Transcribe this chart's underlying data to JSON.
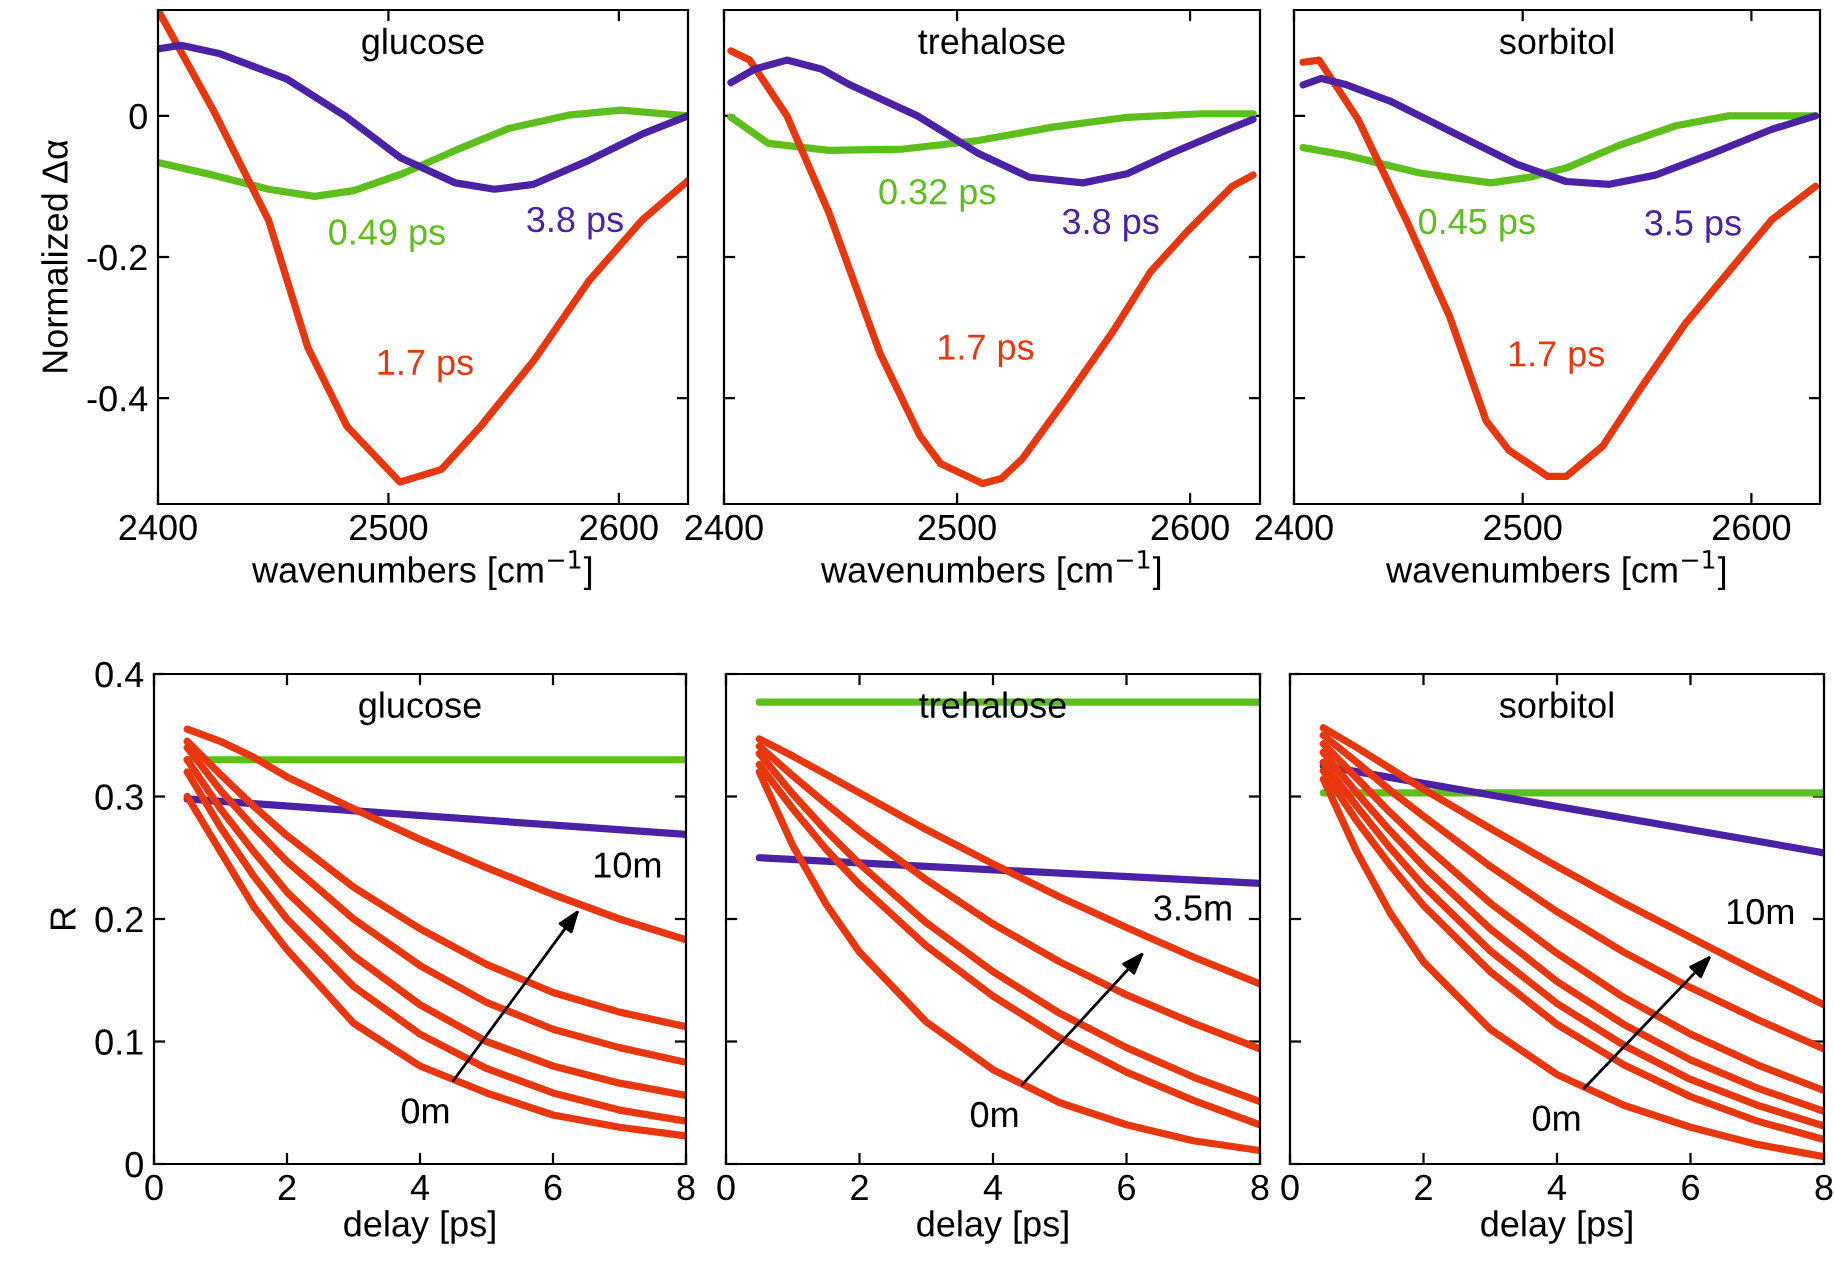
{
  "chart_data": [
    {
      "type": "line",
      "title": "glucose",
      "xlabel": "wavenumbers [cm$^{−1}$]",
      "ylabel": "Normalized Δα",
      "xlim": [
        2400,
        2630
      ],
      "ylim": [
        -0.55,
        0.15
      ],
      "xticks": [
        2400,
        2500,
        2600
      ],
      "yticks": [
        -0.4,
        -0.2,
        0
      ],
      "grid": false,
      "line_style": "solid",
      "marker": "none",
      "series": [
        {
          "name": "0.49 ps",
          "color": "#5cbf1c",
          "x": [
            2400,
            2424,
            2448,
            2468,
            2485,
            2506,
            2529,
            2552,
            2578,
            2601,
            2630
          ],
          "values": [
            -0.066,
            -0.084,
            -0.104,
            -0.114,
            -0.106,
            -0.082,
            -0.049,
            -0.018,
            0.001,
            0.008,
            0
          ]
        },
        {
          "name": "1.7 ps",
          "color": "#e8360e",
          "x": [
            2400,
            2424,
            2448,
            2465,
            2482,
            2505,
            2523,
            2540,
            2563,
            2587,
            2610,
            2630
          ],
          "values": [
            0.15,
            0.008,
            -0.148,
            -0.328,
            -0.44,
            -0.519,
            -0.501,
            -0.44,
            -0.347,
            -0.234,
            -0.148,
            -0.092
          ]
        },
        {
          "name": "3.8 ps",
          "color": "#4b22a6",
          "x": [
            2400,
            2410,
            2427,
            2456,
            2482,
            2505,
            2529,
            2546,
            2563,
            2587,
            2610,
            2630
          ],
          "values": [
            0.095,
            0.1,
            0.088,
            0.052,
            -0.002,
            -0.059,
            -0.095,
            -0.104,
            -0.097,
            -0.063,
            -0.026,
            0
          ]
        }
      ]
    },
    {
      "type": "line",
      "title": "trehalose",
      "xlabel": "wavenumbers [cm$^{−1}$]",
      "xlim": [
        2400,
        2630
      ],
      "ylim": [
        -0.55,
        0.15
      ],
      "xticks": [
        2400,
        2500,
        2600
      ],
      "yticks": [
        -0.4,
        -0.2,
        0
      ],
      "tick_labels": "x",
      "grid": false,
      "line_style": "solid",
      "marker": "none",
      "series": [
        {
          "name": "0.32 ps",
          "color": "#5cbf1c",
          "x": [
            2403,
            2419,
            2445,
            2477,
            2509,
            2541,
            2573,
            2605,
            2627
          ],
          "values": [
            -0.002,
            -0.039,
            -0.049,
            -0.047,
            -0.035,
            -0.016,
            -0.002,
            0.003,
            0.003
          ]
        },
        {
          "name": "1.7 ps",
          "color": "#e8360e",
          "x": [
            2403,
            2411,
            2427,
            2445,
            2467,
            2484,
            2493,
            2511,
            2519,
            2528,
            2547,
            2567,
            2583,
            2599,
            2618,
            2627
          ],
          "values": [
            0.092,
            0.079,
            0,
            -0.137,
            -0.337,
            -0.453,
            -0.493,
            -0.521,
            -0.514,
            -0.486,
            -0.4,
            -0.305,
            -0.221,
            -0.163,
            -0.1,
            -0.084
          ]
        },
        {
          "name": "3.8 ps",
          "color": "#4b22a6",
          "x": [
            2403,
            2413,
            2427,
            2442,
            2454,
            2483,
            2509,
            2531,
            2554,
            2573,
            2592,
            2615,
            2627
          ],
          "values": [
            0.047,
            0.066,
            0.079,
            0.066,
            0.044,
            0,
            -0.053,
            -0.087,
            -0.095,
            -0.082,
            -0.053,
            -0.021,
            -0.005
          ]
        }
      ]
    },
    {
      "type": "line",
      "title": "sorbitol",
      "xlabel": "wavenumbers [cm$^{−1}$]",
      "xlim": [
        2400,
        2630
      ],
      "ylim": [
        -0.55,
        0.15
      ],
      "xticks": [
        2400,
        2500,
        2600
      ],
      "yticks": [
        -0.4,
        -0.2,
        0
      ],
      "tick_labels": "x",
      "grid": false,
      "line_style": "solid",
      "marker": "none",
      "series": [
        {
          "name": "0.45 ps",
          "color": "#5cbf1c",
          "x": [
            2404,
            2423,
            2455,
            2486,
            2503,
            2519,
            2542,
            2567,
            2590,
            2628
          ],
          "values": [
            -0.045,
            -0.056,
            -0.081,
            -0.095,
            -0.087,
            -0.074,
            -0.042,
            -0.014,
            0,
            0
          ]
        },
        {
          "name": "1.7 ps",
          "color": "#e8360e",
          "x": [
            2404,
            2411,
            2428,
            2449,
            2468,
            2484,
            2494,
            2511,
            2519,
            2535,
            2551,
            2571,
            2590,
            2609,
            2628
          ],
          "values": [
            0.076,
            0.079,
            -0.005,
            -0.147,
            -0.284,
            -0.432,
            -0.474,
            -0.511,
            -0.511,
            -0.468,
            -0.389,
            -0.295,
            -0.221,
            -0.147,
            -0.1
          ]
        },
        {
          "name": "3.5 ps",
          "color": "#4b22a6",
          "x": [
            2404,
            2412,
            2423,
            2442,
            2471,
            2497,
            2519,
            2538,
            2558,
            2583,
            2609,
            2628
          ],
          "values": [
            0.044,
            0.053,
            0.044,
            0.021,
            -0.026,
            -0.068,
            -0.093,
            -0.097,
            -0.084,
            -0.053,
            -0.019,
            0
          ]
        }
      ]
    },
    {
      "type": "line",
      "title": "glucose",
      "xlabel": "delay [ps]",
      "ylabel": "R",
      "xlim": [
        0,
        8
      ],
      "ylim": [
        0,
        0.4
      ],
      "xticks": [
        0,
        2,
        4,
        6,
        8
      ],
      "yticks": [
        0,
        0.1,
        0.2,
        0.3,
        0.4
      ],
      "grid": false,
      "line_style": "solid",
      "marker": "none",
      "annotations": [
        {
          "text": "10m",
          "x": 6.45,
          "y": 0.212
        },
        {
          "text": "0m",
          "x": 4.5,
          "y": 0.068
        }
      ],
      "series": [
        {
          "color": "#5cbf1c",
          "x": [
            0.5,
            8
          ],
          "values": [
            0.33,
            0.33
          ]
        },
        {
          "color": "#4b22a6",
          "x": [
            0.5,
            8
          ],
          "values": [
            0.298,
            0.269
          ]
        },
        {
          "color": "#e8360e",
          "x": [
            0.5,
            1,
            1.5,
            2,
            3,
            4,
            5,
            6,
            7,
            8
          ],
          "values": [
            0.355,
            0.345,
            0.332,
            0.316,
            0.29,
            0.265,
            0.242,
            0.22,
            0.2,
            0.183
          ]
        },
        {
          "color": "#e8360e",
          "x": [
            0.5,
            1,
            1.5,
            2,
            3,
            4,
            5,
            6,
            7,
            8
          ],
          "values": [
            0.345,
            0.318,
            0.292,
            0.268,
            0.226,
            0.192,
            0.163,
            0.14,
            0.124,
            0.112
          ]
        },
        {
          "color": "#e8360e",
          "x": [
            0.5,
            1,
            1.5,
            2,
            3,
            4,
            5,
            6,
            7,
            8
          ],
          "values": [
            0.34,
            0.305,
            0.275,
            0.247,
            0.2,
            0.162,
            0.132,
            0.11,
            0.095,
            0.083
          ]
        },
        {
          "color": "#e8360e",
          "x": [
            0.5,
            1,
            1.5,
            2,
            3,
            4,
            5,
            6,
            7,
            8
          ],
          "values": [
            0.33,
            0.29,
            0.255,
            0.222,
            0.17,
            0.13,
            0.1,
            0.08,
            0.066,
            0.056
          ]
        },
        {
          "color": "#e8360e",
          "x": [
            0.5,
            1,
            1.5,
            2,
            3,
            4,
            5,
            6,
            7,
            8
          ],
          "values": [
            0.32,
            0.275,
            0.235,
            0.2,
            0.145,
            0.106,
            0.078,
            0.058,
            0.044,
            0.035
          ]
        },
        {
          "color": "#e8360e",
          "x": [
            0.5,
            1,
            1.5,
            2,
            3,
            4,
            5,
            6,
            7,
            8
          ],
          "values": [
            0.3,
            0.255,
            0.21,
            0.175,
            0.115,
            0.08,
            0.058,
            0.04,
            0.03,
            0.023
          ]
        }
      ]
    },
    {
      "type": "line",
      "title": "trehalose",
      "xlabel": "delay [ps]",
      "xlim": [
        0,
        8
      ],
      "ylim": [
        0,
        0.4
      ],
      "xticks": [
        0,
        2,
        4,
        6,
        8
      ],
      "yticks": [
        0,
        0.1,
        0.2,
        0.3,
        0.4
      ],
      "tick_labels": "x",
      "grid": false,
      "line_style": "solid",
      "marker": "none",
      "annotations": [
        {
          "text": "3.5m",
          "x": 6.33,
          "y": 0.177
        },
        {
          "text": "0m",
          "x": 4.44,
          "y": 0.065
        }
      ],
      "series": [
        {
          "color": "#5cbf1c",
          "x": [
            0.5,
            8
          ],
          "values": [
            0.377,
            0.377
          ]
        },
        {
          "color": "#4b22a6",
          "x": [
            0.5,
            8
          ],
          "values": [
            0.25,
            0.229
          ]
        },
        {
          "color": "#e8360e",
          "x": [
            0.5,
            1,
            1.5,
            2,
            3,
            4,
            5,
            6,
            7,
            8
          ],
          "values": [
            0.347,
            0.333,
            0.318,
            0.303,
            0.273,
            0.245,
            0.218,
            0.193,
            0.169,
            0.147
          ]
        },
        {
          "color": "#e8360e",
          "x": [
            0.5,
            1,
            1.5,
            2,
            3,
            4,
            5,
            6,
            7,
            8
          ],
          "values": [
            0.341,
            0.317,
            0.294,
            0.272,
            0.232,
            0.196,
            0.165,
            0.138,
            0.115,
            0.094
          ]
        },
        {
          "color": "#e8360e",
          "x": [
            0.5,
            1,
            1.5,
            2,
            3,
            4,
            5,
            6,
            7,
            8
          ],
          "values": [
            0.335,
            0.302,
            0.272,
            0.245,
            0.197,
            0.157,
            0.123,
            0.095,
            0.071,
            0.051
          ]
        },
        {
          "color": "#e8360e",
          "x": [
            0.5,
            1,
            1.5,
            2,
            3,
            4,
            5,
            6,
            7,
            8
          ],
          "values": [
            0.326,
            0.29,
            0.257,
            0.228,
            0.178,
            0.137,
            0.103,
            0.075,
            0.052,
            0.032
          ]
        },
        {
          "color": "#e8360e",
          "x": [
            0.5,
            1,
            1.5,
            2,
            3,
            4,
            5,
            6,
            7,
            8
          ],
          "values": [
            0.32,
            0.26,
            0.212,
            0.173,
            0.116,
            0.077,
            0.05,
            0.032,
            0.019,
            0.011
          ]
        }
      ]
    },
    {
      "type": "line",
      "title": "sorbitol",
      "xlabel": "delay [ps]",
      "xlim": [
        0,
        8
      ],
      "ylim": [
        0,
        0.4
      ],
      "xticks": [
        0,
        2,
        4,
        6,
        8
      ],
      "yticks": [
        0,
        0.1,
        0.2,
        0.3,
        0.4
      ],
      "tick_labels": "x",
      "grid": false,
      "line_style": "solid",
      "marker": "none",
      "annotations": [
        {
          "text": "10m",
          "x": 6.38,
          "y": 0.174
        },
        {
          "text": "0m",
          "x": 4.41,
          "y": 0.062
        }
      ],
      "series": [
        {
          "color": "#5cbf1c",
          "x": [
            0.5,
            8
          ],
          "values": [
            0.303,
            0.303
          ]
        },
        {
          "color": "#4b22a6",
          "x": [
            0.5,
            8
          ],
          "values": [
            0.325,
            0.254
          ]
        },
        {
          "color": "#e8360e",
          "x": [
            0.5,
            1,
            1.5,
            2,
            3,
            4,
            5,
            6,
            7,
            8
          ],
          "values": [
            0.356,
            0.34,
            0.323,
            0.306,
            0.274,
            0.243,
            0.213,
            0.185,
            0.157,
            0.13
          ]
        },
        {
          "color": "#e8360e",
          "x": [
            0.5,
            1,
            1.5,
            2,
            3,
            4,
            5,
            6,
            7,
            8
          ],
          "values": [
            0.35,
            0.328,
            0.305,
            0.284,
            0.243,
            0.206,
            0.173,
            0.144,
            0.118,
            0.094
          ]
        },
        {
          "color": "#e8360e",
          "x": [
            0.5,
            1,
            1.5,
            2,
            3,
            4,
            5,
            6,
            7,
            8
          ],
          "values": [
            0.343,
            0.315,
            0.287,
            0.261,
            0.213,
            0.172,
            0.136,
            0.106,
            0.081,
            0.06
          ]
        },
        {
          "color": "#e8360e",
          "x": [
            0.5,
            1,
            1.5,
            2,
            3,
            4,
            5,
            6,
            7,
            8
          ],
          "values": [
            0.336,
            0.303,
            0.272,
            0.243,
            0.192,
            0.149,
            0.114,
            0.085,
            0.062,
            0.043
          ]
        },
        {
          "color": "#e8360e",
          "x": [
            0.5,
            1,
            1.5,
            2,
            3,
            4,
            5,
            6,
            7,
            8
          ],
          "values": [
            0.328,
            0.292,
            0.258,
            0.227,
            0.174,
            0.131,
            0.097,
            0.069,
            0.048,
            0.031
          ]
        },
        {
          "color": "#e8360e",
          "x": [
            0.5,
            1,
            1.5,
            2,
            3,
            4,
            5,
            6,
            7,
            8
          ],
          "values": [
            0.321,
            0.28,
            0.244,
            0.211,
            0.157,
            0.114,
            0.081,
            0.055,
            0.035,
            0.02
          ]
        },
        {
          "color": "#e8360e",
          "x": [
            0.5,
            1,
            1.5,
            2,
            3,
            4,
            5,
            6,
            7,
            8
          ],
          "values": [
            0.314,
            0.255,
            0.205,
            0.165,
            0.11,
            0.073,
            0.048,
            0.03,
            0.016,
            0.006
          ]
        }
      ]
    }
  ]
}
